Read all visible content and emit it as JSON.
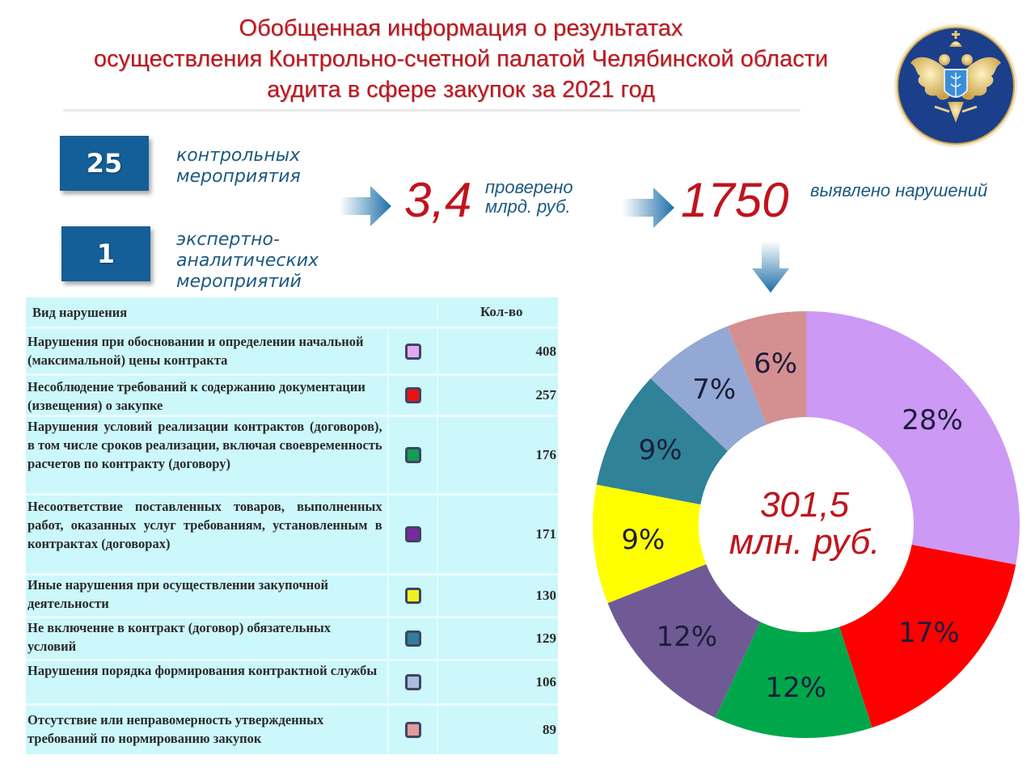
{
  "header": {
    "title_lines": [
      "Обобщенная информация о результатах",
      "осуществления Контрольно-счетной палатой Челябинской области",
      "аудита в сфере закупок за 2021 год"
    ],
    "emblem_icon": "double-headed-eagle-emblem-icon"
  },
  "stats": {
    "control": {
      "value": "25",
      "label_lines": [
        "контрольных",
        "мероприятия"
      ]
    },
    "expert": {
      "value": "1",
      "label_lines": [
        "экспертно-",
        "аналитических",
        "мероприятий"
      ]
    },
    "checked": {
      "value": "3,4",
      "label_lines": [
        "проверено",
        "млрд. руб."
      ]
    },
    "violations": {
      "value": "1750",
      "label": "выявлено нарушений"
    },
    "arrow_icon": "arrow-right-icon",
    "down_arrow_icon": "arrow-down-icon"
  },
  "table": {
    "headers": {
      "type": "Вид нарушения",
      "count": "Кол-во"
    },
    "rows": [
      {
        "text": "Нарушения при обосновании и определении начальной (максимальной) цены контракта",
        "color": "#e4a8f0",
        "count": "408"
      },
      {
        "text": "Несоблюдение требований к содержанию документации (извещения) о закупке",
        "color": "#ee1111",
        "count": "257"
      },
      {
        "text": "Нарушения условий реализации контрактов (договоров), в том числе сроков реализации, включая своевременность расчетов по контракту (договору)",
        "color": "#10a050",
        "count": "176"
      },
      {
        "text": "Несоответствие поставленных товаров, выполненных работ, оказанных услуг требованиям, установленным в контрактах (договорах)",
        "color": "#7a2aa0",
        "count": "171"
      },
      {
        "text": "Иные нарушения при осуществлении закупочной деятельности",
        "color": "#f4f020",
        "count": "130"
      },
      {
        "text": "Не включение в контракт (договор) обязательных условий",
        "color": "#2f7f9a",
        "count": "129"
      },
      {
        "text": "Нарушения порядка формирования контрактной службы",
        "color": "#a9bde0",
        "count": "106"
      },
      {
        "text": "Отсутствие или неправомерность утвержденных требований по нормированию закупок",
        "color": "#e39a9a",
        "count": "89"
      }
    ]
  },
  "chart_data": {
    "type": "pie",
    "subtype": "donut",
    "title": "",
    "center_label_lines": [
      "301,5",
      "млн. руб."
    ],
    "categories": [
      "Нарушения при обосновании и определении начальной (максимальной) цены контракта",
      "Несоблюдение требований к содержанию документации (извещения) о закупке",
      "Нарушения условий реализации контрактов (договоров)",
      "Несоответствие поставленных товаров, выполненных работ, оказанных услуг",
      "Иные нарушения при осуществлении закупочной деятельности",
      "Не включение в контракт (договор) обязательных условий",
      "Нарушения порядка формирования контрактной службы",
      "Отсутствие или неправомерность утвержденных требований по нормированию закупок"
    ],
    "values": [
      28,
      17,
      12,
      12,
      9,
      9,
      7,
      6
    ],
    "labels": [
      "28%",
      "17%",
      "12%",
      "12%",
      "9%",
      "9%",
      "7%",
      "6%"
    ],
    "colors": [
      "#cc99f5",
      "#ff0000",
      "#00a74a",
      "#6f5a96",
      "#ffff00",
      "#2f8298",
      "#93a8d4",
      "#d49090"
    ],
    "start_angle": "12 o'clock",
    "direction": "clockwise",
    "legend_position": "table on left"
  }
}
